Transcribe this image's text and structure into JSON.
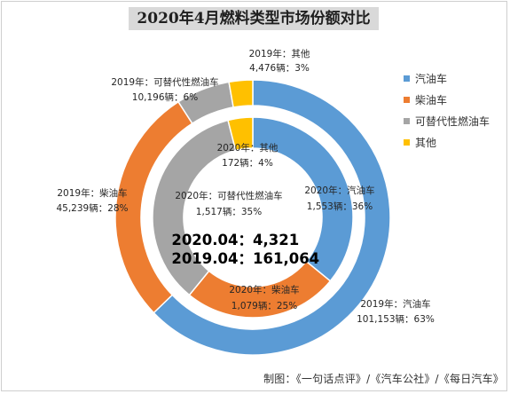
{
  "chart_data": {
    "type": "pie",
    "title": "2020年4月燃料类型市场份额对比",
    "series": [
      {
        "values": [
          101153,
          45239,
          10196,
          4476
        ],
        "labels": [
          [
            "2019年：汽油车",
            "101,153辆：63%"
          ],
          [
            "2019年：柴油车",
            "45,239辆：28%"
          ],
          [
            "2019年：可替代性燃油车",
            "10,196辆：6%"
          ],
          [
            "2019年：其他",
            "4,476辆：3%"
          ]
        ]
      },
      {
        "values": [
          1553,
          1079,
          1517,
          172
        ],
        "labels": [
          [
            "2020年：汽油车",
            "1,553辆：36%"
          ],
          [
            "2020年：柴油车",
            "1,079辆：25%"
          ],
          [
            "2020年：可替代性燃油车",
            "1,517辆：35%"
          ],
          [
            "2020年：其他",
            "172辆：4%"
          ]
        ]
      }
    ],
    "categories": [
      "汽油车",
      "柴油车",
      "可替代性燃油车",
      "其他"
    ],
    "colors": [
      "#5b9bd5",
      "#ed7d31",
      "#a5a5a5",
      "#ffc000"
    ],
    "legend_position": "right",
    "totals": [
      {
        "label": "2020.04：",
        "value": "4,321"
      },
      {
        "label": "2019.04：",
        "value": "161,064"
      }
    ]
  },
  "credit": "制图：《一句话点评》/《汽车公社》/《每日汽车》"
}
